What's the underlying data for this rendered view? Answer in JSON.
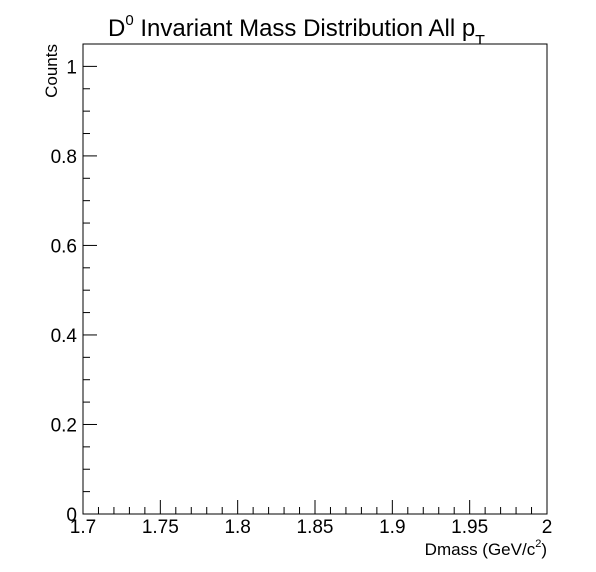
{
  "chart_data": {
    "type": "line",
    "title": {
      "prefix": "D",
      "prefix_sup": "0",
      "main": " Invariant Mass Distribution All p",
      "sub": "T"
    },
    "xlabel": {
      "main": "Dmass (GeV/c",
      "sup": "2",
      "suffix": ")"
    },
    "ylabel": "Counts",
    "xlim": [
      1.7,
      2.0
    ],
    "ylim": [
      0,
      1.05
    ],
    "x_ticks": [
      {
        "value": 1.7,
        "label": "1.7"
      },
      {
        "value": 1.75,
        "label": "1.75"
      },
      {
        "value": 1.8,
        "label": "1.8"
      },
      {
        "value": 1.85,
        "label": "1.85"
      },
      {
        "value": 1.9,
        "label": "1.9"
      },
      {
        "value": 1.95,
        "label": "1.95"
      },
      {
        "value": 2.0,
        "label": "2"
      }
    ],
    "y_ticks": [
      {
        "value": 0,
        "label": "0"
      },
      {
        "value": 0.2,
        "label": "0.2"
      },
      {
        "value": 0.4,
        "label": "0.4"
      },
      {
        "value": 0.6,
        "label": "0.6"
      },
      {
        "value": 0.8,
        "label": "0.8"
      },
      {
        "value": 1.0,
        "label": "1"
      }
    ],
    "x_minor_step": 0.01,
    "y_minor_step": 0.05,
    "grid": false,
    "series": []
  }
}
